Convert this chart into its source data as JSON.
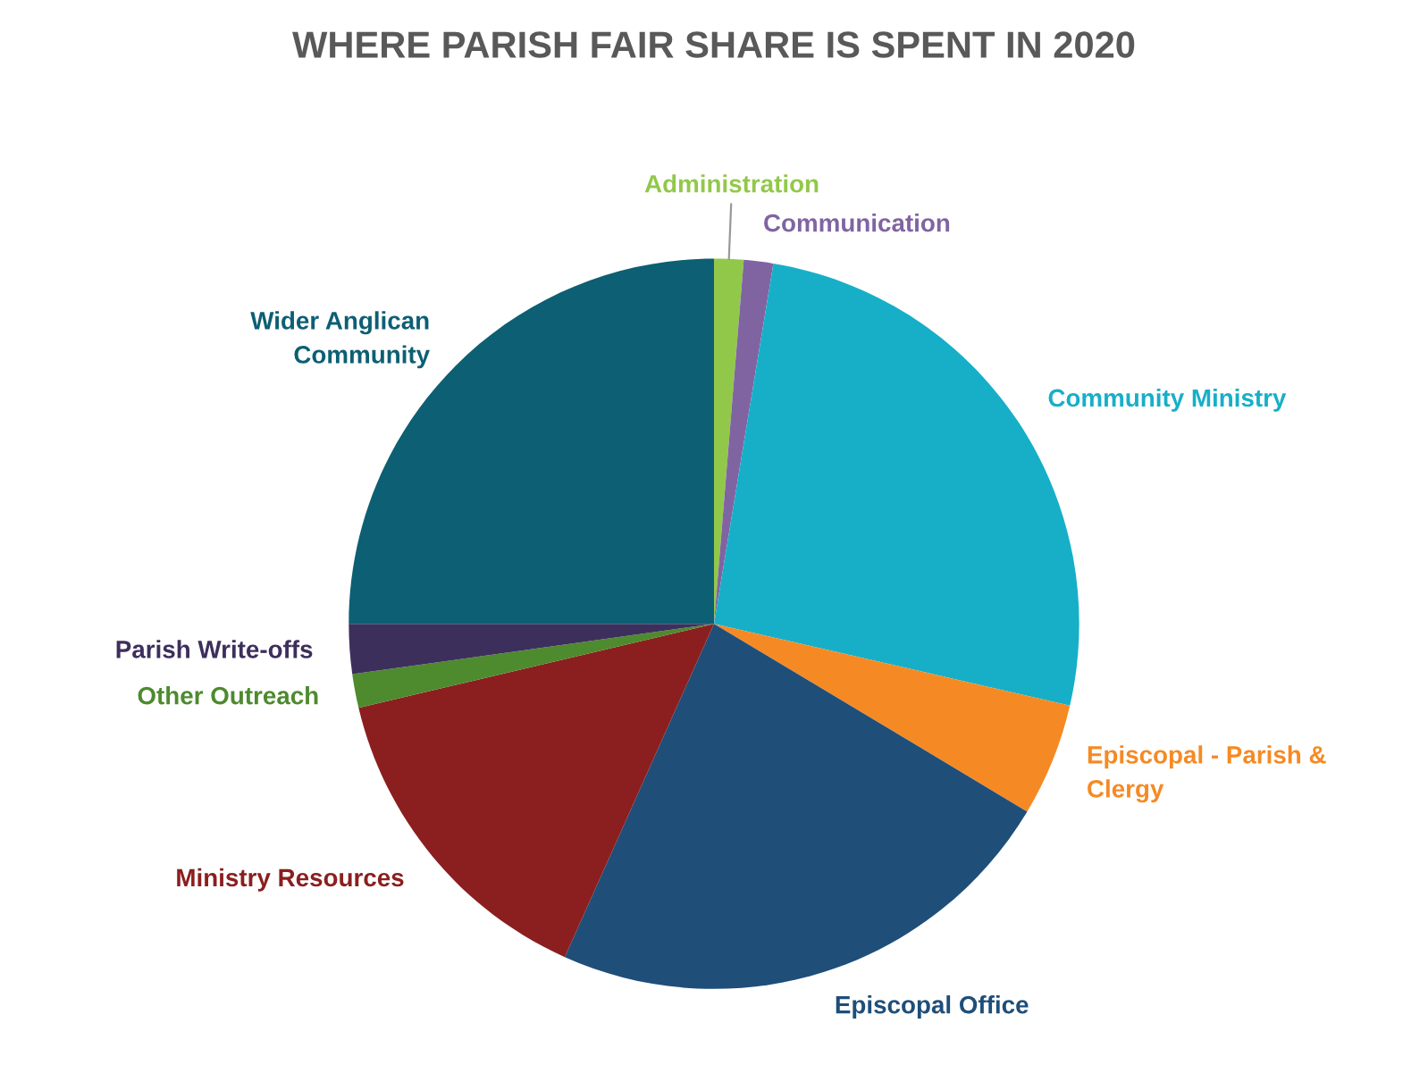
{
  "chart_data": {
    "type": "pie",
    "title": "WHERE PARISH FAIR SHARE IS SPENT IN 2020",
    "categories": [
      "Administration",
      "Communication",
      "Community Ministry",
      "Episcopal - Parish &\nClergy",
      "Episcopal Office",
      "Ministry Resources",
      "Other Outreach",
      "Parish Write-offs",
      "Wider Anglican\nCommunity"
    ],
    "values": [
      1.3,
      1.3,
      26,
      5,
      23.1,
      14.6,
      1.5,
      2.2,
      25
    ],
    "colors": [
      "#92c84a",
      "#8064a2",
      "#17afc8",
      "#f58a24",
      "#1f4e79",
      "#8b1f1f",
      "#4e8a2e",
      "#3d2f5c",
      "#0d5f73"
    ],
    "legend": false
  }
}
